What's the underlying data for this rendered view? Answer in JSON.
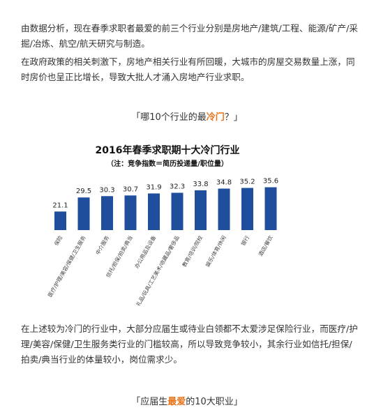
{
  "paragraphs": [
    "由数据分析，现在春季求职者最爱的前三个行业分别是房地产/建筑/工程、能源/矿产/采掘/冶炼、航空/航天研究与制造。",
    "在政府政策的相关刺激下，房地产相关行业有所回暖，大城市的房屋交易数量上涨，同时房价也呈正比增长，导致大批人才涌入房地产行业求职。",
    "在上述较为冷门的行业中，大部分应届生或待业白领都不太爱涉足保险行业，而医疗/护理/美容/保健/卫生服务类行业的门槛较高，所以导致竞争较小，其余行业如信托/担保/拍卖/典当行业的体量较小，岗位需求少。"
  ],
  "headings": [
    [
      "「哪10个行业的最",
      "冷门",
      "？」"
    ],
    [
      "「应届生",
      "最爱",
      "的10大职业」"
    ]
  ],
  "chart_data": {
    "type": "bar",
    "title": "2016年春季求职期十大冷门行业",
    "subtitle": "（注：竞争指数＝简历投递量/职位量）",
    "categories": [
      "保险",
      "医疗/护理/美容/保健/卫生服务",
      "中介服务",
      "信托/担保/拍卖/典当",
      "办公用品及设备",
      "礼品/玩具/工艺美术/收藏品/奢侈品",
      "教育/培训/院校",
      "娱乐/体育/休闲",
      "银行",
      "酒店/餐饮"
    ],
    "values": [
      21.1,
      29.5,
      30.3,
      30.7,
      31.9,
      32.3,
      33.8,
      34.8,
      35.2,
      35.6
    ],
    "color": "#1f4e9c",
    "ylim": [
      10,
      40
    ]
  }
}
